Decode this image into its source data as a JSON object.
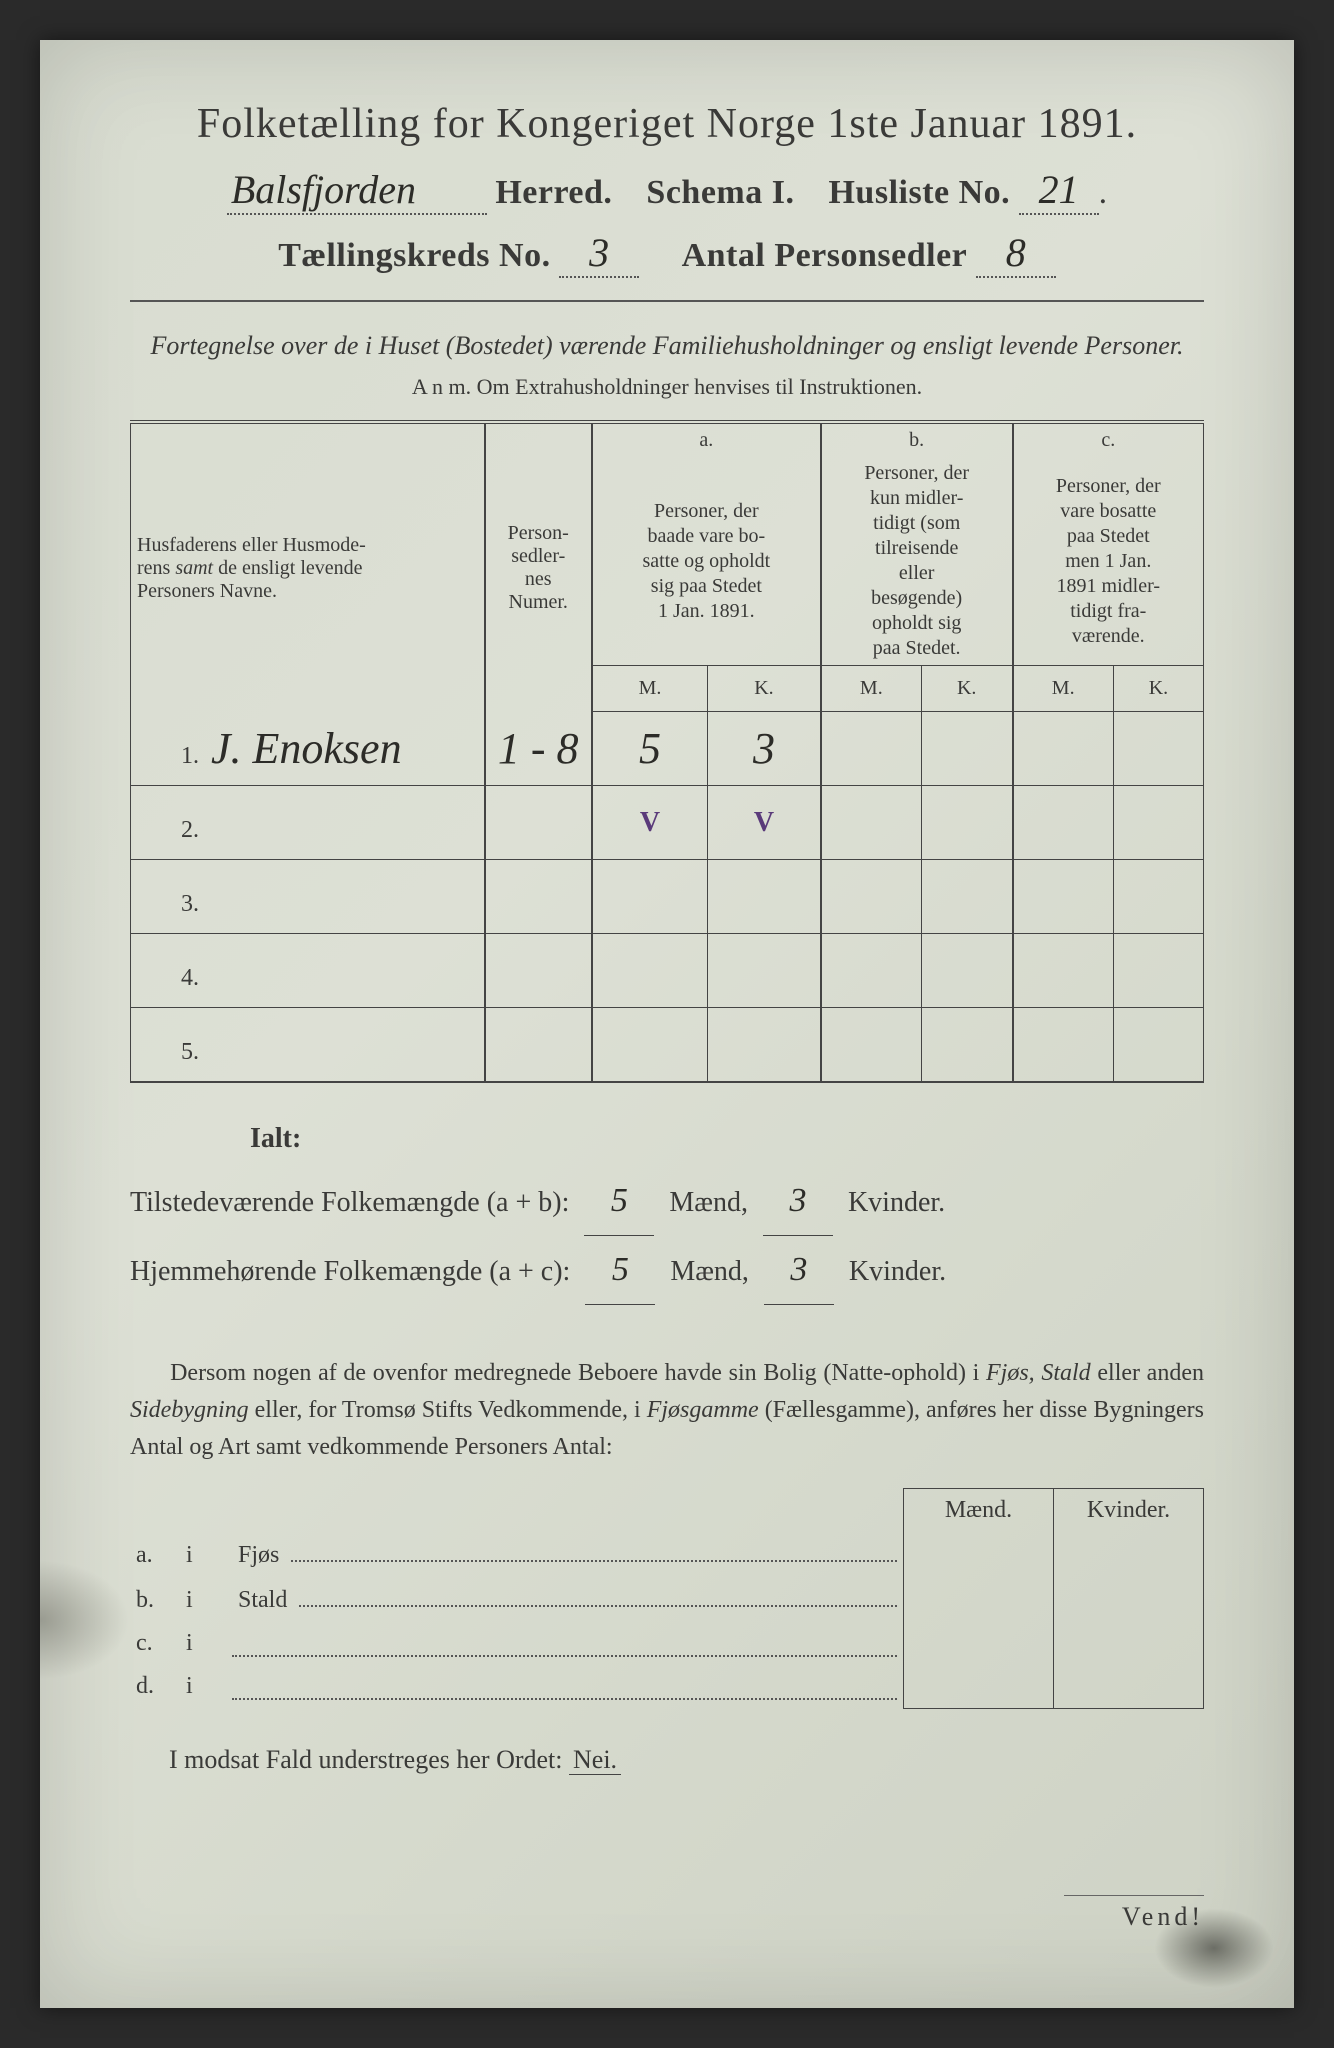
{
  "header": {
    "title": "Folketælling for Kongeriget Norge 1ste Januar 1891.",
    "herred_hw": "Balsfjorden",
    "herred_label": "Herred.",
    "schema_label": "Schema I.",
    "husliste_label": "Husliste No.",
    "husliste_no": "21",
    "kreds_label": "Tællingskreds No.",
    "kreds_no": "3",
    "personsedler_label": "Antal Personsedler",
    "personsedler_no": "8"
  },
  "subtitle": {
    "line1": "Fortegnelse over de i Huset (Bostedet) værende Familiehusholdninger og ensligt levende Personer.",
    "anm": "A n m.  Om Extrahusholdninger henvises til Instruktionen."
  },
  "table": {
    "col_name": "Husfaderens eller Husmoderens samt de ensligt levende Personers Navne.",
    "col_num": "Person-sedler-nes Numer.",
    "col_a_head": "a.",
    "col_a": "Personer, der baade vare bosatte og opholdt sig paa Stedet 1 Jan. 1891.",
    "col_b_head": "b.",
    "col_b": "Personer, der kun midlertidigt (som tilreisende eller besøgende) opholdt sig paa Stedet.",
    "col_c_head": "c.",
    "col_c": "Personer, der vare bosatte paa Stedet men 1 Jan. 1891 midlertidigt fraværende.",
    "mk_m": "M.",
    "mk_k": "K.",
    "rows": [
      {
        "n": "1.",
        "name": "J. Enoksen",
        "num": "1 - 8",
        "a_m": "5",
        "a_k": "3",
        "b_m": "",
        "b_k": "",
        "c_m": "",
        "c_k": ""
      },
      {
        "n": "2.",
        "name": "",
        "num": "",
        "a_m": "V",
        "a_k": "V",
        "b_m": "",
        "b_k": "",
        "c_m": "",
        "c_k": "",
        "purple": true
      },
      {
        "n": "3.",
        "name": "",
        "num": "",
        "a_m": "",
        "a_k": "",
        "b_m": "",
        "b_k": "",
        "c_m": "",
        "c_k": ""
      },
      {
        "n": "4.",
        "name": "",
        "num": "",
        "a_m": "",
        "a_k": "",
        "b_m": "",
        "b_k": "",
        "c_m": "",
        "c_k": ""
      },
      {
        "n": "5.",
        "name": "",
        "num": "",
        "a_m": "",
        "a_k": "",
        "b_m": "",
        "b_k": "",
        "c_m": "",
        "c_k": ""
      }
    ]
  },
  "totals": {
    "ialt": "Ialt:",
    "present_label": "Tilstedeværende Folkemængde (a + b):",
    "home_label": "Hjemmehørende Folkemængde (a + c):",
    "maend": "Mænd,",
    "kvinder": "Kvinder.",
    "present_m": "5",
    "present_k": "3",
    "home_m": "5",
    "home_k": "3"
  },
  "paragraph": "Dersom nogen af de ovenfor medregnede Beboere havde sin Bolig (Natteophold) i Fjøs, Stald eller anden Sidebygning eller, for Tromsø Stifts Vedkommende, i Fjøsgamme (Fællesgamme), anføres her disse Bygningers Antal og Art samt vedkommende Personers Antal:",
  "outbuildings": {
    "head_m": "Mænd.",
    "head_k": "Kvinder.",
    "rows": [
      {
        "key": "a.",
        "i": "i",
        "label": "Fjøs"
      },
      {
        "key": "b.",
        "i": "i",
        "label": "Stald"
      },
      {
        "key": "c.",
        "i": "i",
        "label": ""
      },
      {
        "key": "d.",
        "i": "i",
        "label": ""
      }
    ]
  },
  "nei_line": "I modsat Fald understreges her Ordet:",
  "nei": "Nei.",
  "vend": "Vend!"
}
